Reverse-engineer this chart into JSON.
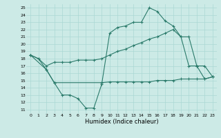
{
  "xlabel": "Humidex (Indice chaleur)",
  "background_color": "#cceae6",
  "grid_color": "#aad8d4",
  "line_color": "#2a7a6a",
  "xlim": [
    -0.5,
    23.5
  ],
  "ylim": [
    10.5,
    25.5
  ],
  "xticks": [
    0,
    1,
    2,
    3,
    4,
    5,
    6,
    7,
    8,
    9,
    10,
    11,
    12,
    13,
    14,
    15,
    16,
    17,
    18,
    19,
    20,
    21,
    22,
    23
  ],
  "yticks": [
    11,
    12,
    13,
    14,
    15,
    16,
    17,
    18,
    19,
    20,
    21,
    22,
    23,
    24,
    25
  ],
  "line1_x": [
    0,
    1,
    2,
    3,
    4,
    5,
    6,
    7,
    8,
    9,
    10,
    11,
    12,
    13,
    14,
    15,
    16,
    17,
    18,
    19,
    20,
    21,
    22,
    23
  ],
  "line1_y": [
    18.5,
    18.0,
    16.5,
    14.7,
    13.0,
    13.0,
    12.5,
    11.2,
    11.2,
    14.5,
    21.5,
    22.3,
    22.5,
    23.0,
    23.0,
    25.0,
    24.5,
    23.2,
    22.5,
    21.0,
    17.0,
    17.0,
    15.2,
    15.5
  ],
  "line2_x": [
    0,
    1,
    2,
    3,
    4,
    5,
    6,
    7,
    8,
    9,
    10,
    11,
    12,
    13,
    14,
    15,
    16,
    17,
    18,
    19,
    20,
    21,
    22,
    23
  ],
  "line2_y": [
    18.5,
    18.0,
    17.0,
    17.5,
    17.5,
    17.5,
    17.8,
    17.8,
    17.8,
    18.0,
    18.5,
    19.0,
    19.3,
    19.8,
    20.2,
    20.7,
    21.0,
    21.5,
    22.0,
    21.0,
    21.0,
    17.0,
    17.0,
    15.5
  ],
  "line3_x": [
    0,
    2,
    3,
    9,
    10,
    11,
    12,
    13,
    14,
    15,
    16,
    17,
    18,
    19,
    20,
    21,
    22,
    23
  ],
  "line3_y": [
    18.5,
    16.5,
    14.7,
    14.7,
    14.8,
    14.8,
    14.8,
    14.8,
    14.8,
    14.8,
    15.0,
    15.0,
    15.0,
    15.2,
    15.2,
    15.2,
    15.2,
    15.5
  ]
}
